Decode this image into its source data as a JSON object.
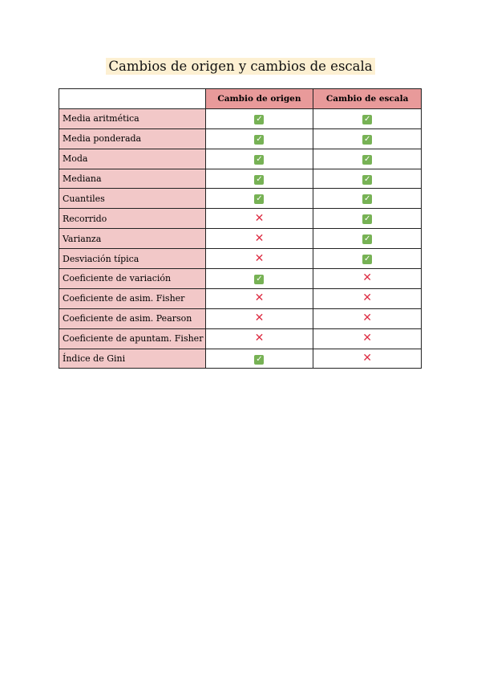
{
  "title": "Cambios de origen y cambios de escala",
  "columns": [
    "",
    "Cambio de origen",
    "Cambio de escala"
  ],
  "rows": [
    {
      "label": "Media aritmética",
      "origen": true,
      "escala": true
    },
    {
      "label": "Media ponderada",
      "origen": true,
      "escala": true
    },
    {
      "label": "Moda",
      "origen": true,
      "escala": true
    },
    {
      "label": "Mediana",
      "origen": true,
      "escala": true
    },
    {
      "label": "Cuantiles",
      "origen": true,
      "escala": true
    },
    {
      "label": "Recorrido",
      "origen": false,
      "escala": true
    },
    {
      "label": "Varianza",
      "origen": false,
      "escala": true
    },
    {
      "label": "Desviación típica",
      "origen": false,
      "escala": true
    },
    {
      "label": "Coeficiente de variación",
      "origen": true,
      "escala": false
    },
    {
      "label": "Coeficiente de asim. Fisher",
      "origen": false,
      "escala": false
    },
    {
      "label": "Coeficiente de asim. Pearson",
      "origen": false,
      "escala": false
    },
    {
      "label": "Coeficiente de apuntam. Fisher",
      "origen": false,
      "escala": false
    },
    {
      "label": "Índice de Gini",
      "origen": true,
      "escala": false
    }
  ],
  "icons": {
    "true": "check-mark-button-icon",
    "false": "cross-mark-icon"
  },
  "colors": {
    "header": "#e89a9a",
    "label_column": "#f2c8c8",
    "title_highlight": "#fdf0d2",
    "check": "#77b255",
    "cross": "#dd2e44"
  }
}
